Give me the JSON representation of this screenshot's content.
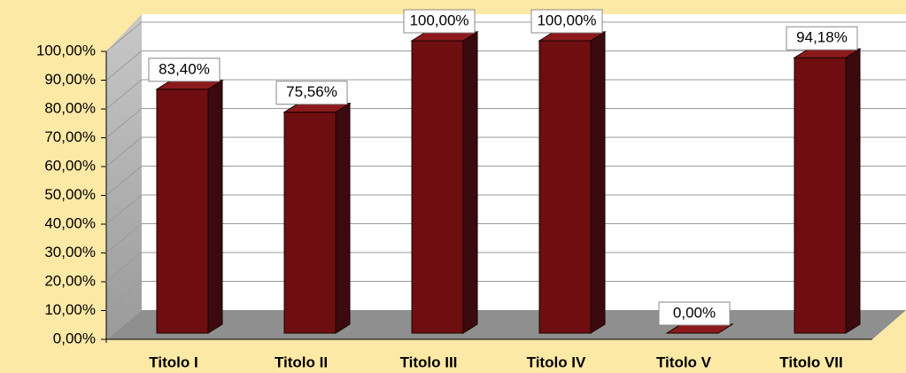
{
  "chart_data": {
    "type": "bar",
    "categories": [
      "Titolo I",
      "Titolo II",
      "Titolo III",
      "Titolo IV",
      "Titolo V",
      "Titolo VII"
    ],
    "values": [
      83.4,
      75.56,
      100,
      100,
      0,
      94.18
    ],
    "value_labels": [
      "83,40%",
      "75,56%",
      "100,00%",
      "100,00%",
      "0,00%",
      "94,18%"
    ],
    "color": "#6e0e10",
    "ylim": [
      0,
      100
    ],
    "yticks": [
      {
        "value": 0,
        "label": "0,00%"
      },
      {
        "value": 10,
        "label": "10,00%"
      },
      {
        "value": 20,
        "label": "20,00%"
      },
      {
        "value": 30,
        "label": "30,00%"
      },
      {
        "value": 40,
        "label": "40,00%"
      },
      {
        "value": 50,
        "label": "50,00%"
      },
      {
        "value": 60,
        "label": "60,00%"
      },
      {
        "value": 70,
        "label": "70,00%"
      },
      {
        "value": 80,
        "label": "80,00%"
      },
      {
        "value": 90,
        "label": "90,00%"
      },
      {
        "value": 100,
        "label": "100,00%"
      }
    ],
    "grid": true
  }
}
